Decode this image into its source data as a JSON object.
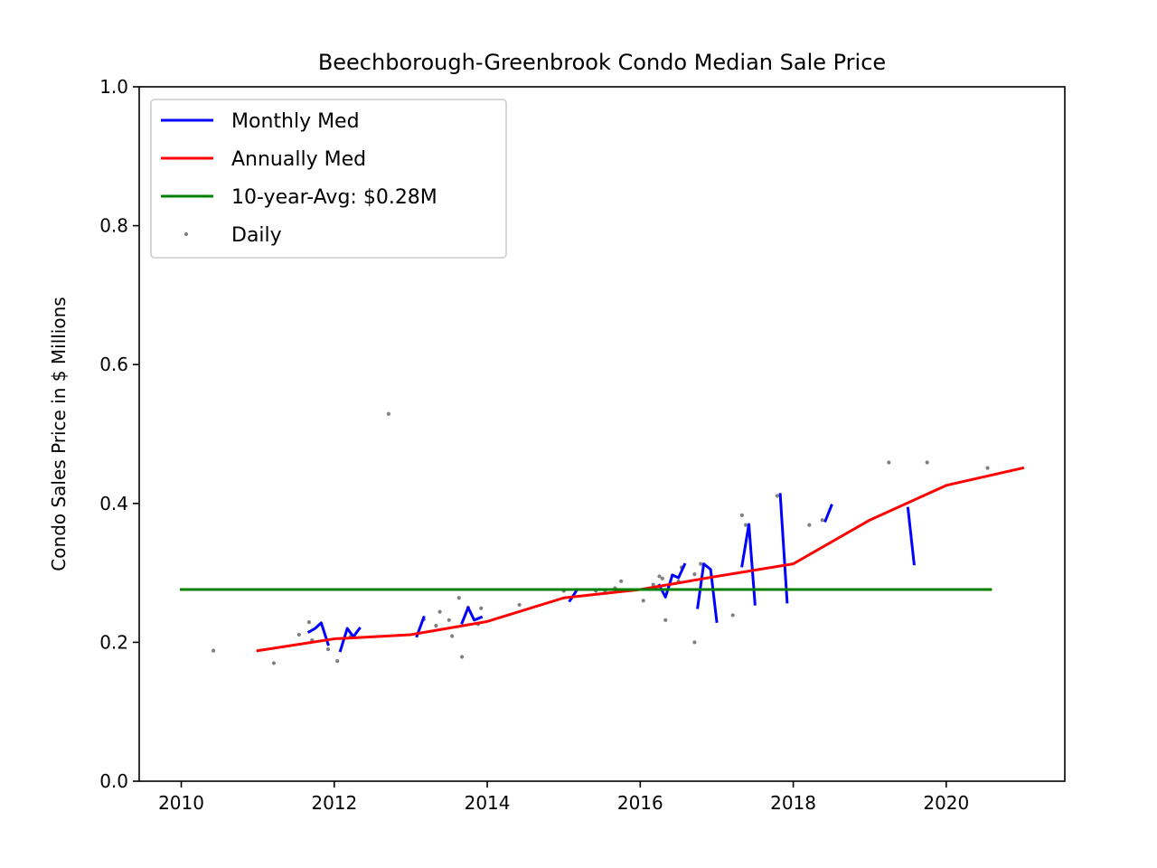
{
  "chart_data": {
    "type": "line",
    "title": "Beechborough-Greenbrook Condo Median Sale Price",
    "xlabel": "",
    "ylabel": "Condo Sales Price in $ Millions",
    "xlim": [
      2009.45,
      2021.55
    ],
    "ylim": [
      0.0,
      1.0
    ],
    "x_ticks": [
      2010,
      2012,
      2014,
      2016,
      2018,
      2020
    ],
    "y_ticks": [
      0.0,
      0.2,
      0.4,
      0.6,
      0.8,
      1.0
    ],
    "x_tick_labels": [
      "2010",
      "2012",
      "2014",
      "2016",
      "2018",
      "2020"
    ],
    "y_tick_labels": [
      "0.0",
      "0.2",
      "0.4",
      "0.6",
      "0.8",
      "1.0"
    ],
    "grid": false,
    "legend_position": "top-left",
    "legend": [
      {
        "label": "Monthly Med",
        "color": "#0000ff",
        "kind": "line"
      },
      {
        "label": "Annually Med",
        "color": "#ff0000",
        "kind": "line"
      },
      {
        "label": "10-year-Avg: $0.28M",
        "color": "#008000",
        "kind": "line"
      },
      {
        "label": "Daily",
        "color": "#808080",
        "kind": "dot"
      }
    ],
    "series": [
      {
        "name": "Monthly Med",
        "color": "#0000ff",
        "segments": [
          [
            [
              2011.67,
              0.215
            ],
            [
              2011.75,
              0.22
            ],
            [
              2011.83,
              0.228
            ],
            [
              2011.92,
              0.197
            ]
          ],
          [
            [
              2012.08,
              0.188
            ],
            [
              2012.17,
              0.22
            ],
            [
              2012.25,
              0.208
            ],
            [
              2012.33,
              0.22
            ]
          ],
          [
            [
              2013.08,
              0.209
            ],
            [
              2013.17,
              0.236
            ]
          ],
          [
            [
              2013.67,
              0.228
            ],
            [
              2013.75,
              0.25
            ],
            [
              2013.83,
              0.232
            ],
            [
              2013.92,
              0.236
            ]
          ],
          [
            [
              2015.08,
              0.26
            ],
            [
              2015.17,
              0.275
            ]
          ],
          [
            [
              2016.25,
              0.282
            ],
            [
              2016.33,
              0.265
            ],
            [
              2016.42,
              0.297
            ],
            [
              2016.5,
              0.293
            ],
            [
              2016.58,
              0.312
            ]
          ],
          [
            [
              2016.75,
              0.25
            ],
            [
              2016.83,
              0.313
            ],
            [
              2016.92,
              0.305
            ],
            [
              2017.0,
              0.23
            ]
          ],
          [
            [
              2017.33,
              0.31
            ],
            [
              2017.42,
              0.37
            ],
            [
              2017.5,
              0.255
            ]
          ],
          [
            [
              2017.83,
              0.413
            ],
            [
              2017.92,
              0.258
            ]
          ],
          [
            [
              2018.42,
              0.375
            ],
            [
              2018.5,
              0.397
            ]
          ],
          [
            [
              2019.5,
              0.393
            ],
            [
              2019.58,
              0.313
            ]
          ]
        ]
      },
      {
        "name": "Annually Med",
        "color": "#ff0000",
        "x": [
          2011.0,
          2012.0,
          2013.0,
          2014.0,
          2015.0,
          2016.0,
          2017.0,
          2018.0,
          2019.0,
          2020.0,
          2021.0
        ],
        "y": [
          0.188,
          0.205,
          0.211,
          0.23,
          0.264,
          0.276,
          0.295,
          0.313,
          0.376,
          0.426,
          0.451
        ]
      },
      {
        "name": "10-year-Avg: $0.28M",
        "color": "#008000",
        "x": [
          2010.0,
          2020.58
        ],
        "y": [
          0.276,
          0.276
        ]
      },
      {
        "name": "Daily",
        "color": "#808080",
        "points": [
          [
            2010.42,
            0.188
          ],
          [
            2011.21,
            0.17
          ],
          [
            2011.54,
            0.211
          ],
          [
            2011.67,
            0.229
          ],
          [
            2011.71,
            0.203
          ],
          [
            2011.92,
            0.19
          ],
          [
            2012.04,
            0.173
          ],
          [
            2012.21,
            0.208
          ],
          [
            2012.71,
            0.529
          ],
          [
            2013.17,
            0.233
          ],
          [
            2013.33,
            0.224
          ],
          [
            2013.38,
            0.244
          ],
          [
            2013.5,
            0.232
          ],
          [
            2013.54,
            0.209
          ],
          [
            2013.63,
            0.264
          ],
          [
            2013.67,
            0.179
          ],
          [
            2013.75,
            0.25
          ],
          [
            2013.88,
            0.226
          ],
          [
            2013.92,
            0.249
          ],
          [
            2014.42,
            0.254
          ],
          [
            2015.0,
            0.274
          ],
          [
            2015.42,
            0.274
          ],
          [
            2015.54,
            0.274
          ],
          [
            2015.67,
            0.278
          ],
          [
            2015.75,
            0.288
          ],
          [
            2016.04,
            0.26
          ],
          [
            2016.17,
            0.283
          ],
          [
            2016.25,
            0.295
          ],
          [
            2016.29,
            0.292
          ],
          [
            2016.33,
            0.232
          ],
          [
            2016.42,
            0.296
          ],
          [
            2016.5,
            0.288
          ],
          [
            2016.54,
            0.308
          ],
          [
            2016.71,
            0.298
          ],
          [
            2016.71,
            0.2
          ],
          [
            2016.79,
            0.313
          ],
          [
            2017.21,
            0.239
          ],
          [
            2017.33,
            0.383
          ],
          [
            2017.38,
            0.369
          ],
          [
            2017.79,
            0.411
          ],
          [
            2018.21,
            0.369
          ],
          [
            2018.38,
            0.376
          ],
          [
            2019.25,
            0.459
          ],
          [
            2019.75,
            0.459
          ],
          [
            2020.54,
            0.451
          ]
        ]
      }
    ]
  }
}
